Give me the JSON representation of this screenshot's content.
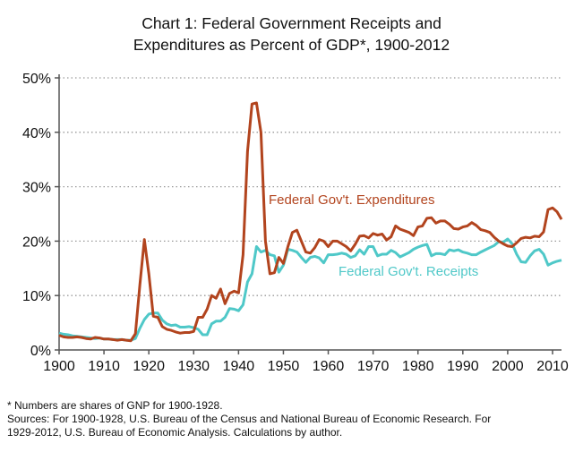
{
  "chart_data": {
    "type": "line",
    "title": "Chart 1: Federal Government Receipts and Expenditures as Percent of GDP*, 1900-2012",
    "title_lines": [
      "Chart 1: Federal Government Receipts and",
      "Expenditures as Percent of GDP*, 1900-2012"
    ],
    "xlabel": "",
    "ylabel": "",
    "xlim": [
      1900,
      2012
    ],
    "ylim": [
      0,
      50
    ],
    "x_ticks": [
      "1900",
      "1910",
      "1920",
      "1930",
      "1940",
      "1950",
      "1960",
      "1970",
      "1980",
      "1990",
      "2000",
      "2010"
    ],
    "y_ticks": [
      "0%",
      "10%",
      "20%",
      "30%",
      "40%",
      "50%"
    ],
    "grid": "horizontal dotted",
    "x_start": 1900,
    "series": [
      {
        "name": "Federal Gov't. Expenditures",
        "color": "#b2441e",
        "values": [
          2.7,
          2.4,
          2.3,
          2.3,
          2.4,
          2.3,
          2.1,
          2.0,
          2.3,
          2.2,
          2.0,
          2.0,
          1.9,
          1.8,
          1.9,
          1.8,
          1.7,
          3.0,
          12.0,
          20.3,
          14.0,
          6.2,
          6.0,
          4.3,
          3.8,
          3.6,
          3.3,
          3.1,
          3.2,
          3.2,
          3.4,
          6.0,
          6.0,
          7.5,
          10.0,
          9.5,
          11.2,
          8.5,
          10.4,
          10.8,
          10.5,
          17.5,
          36.5,
          45.2,
          45.4,
          40.0,
          20.0,
          14.0,
          14.2,
          17.0,
          15.9,
          19.0,
          21.6,
          22.0,
          20.0,
          18.0,
          17.8,
          18.8,
          20.3,
          20.0,
          19.0,
          20.0,
          20.0,
          19.5,
          19.0,
          18.2,
          19.4,
          20.9,
          21.0,
          20.6,
          21.4,
          21.1,
          21.3,
          20.2,
          20.8,
          22.8,
          22.2,
          21.9,
          21.6,
          21.0,
          22.6,
          22.8,
          24.2,
          24.3,
          23.3,
          23.7,
          23.7,
          23.1,
          22.3,
          22.2,
          22.6,
          22.8,
          23.4,
          22.9,
          22.1,
          21.9,
          21.6,
          20.7,
          20.0,
          19.5,
          19.1,
          19.0,
          19.7,
          20.5,
          20.7,
          20.6,
          20.9,
          20.8,
          21.7,
          25.8,
          26.1,
          25.4,
          24.0
        ]
      },
      {
        "name": "Federal Gov't. Receipts",
        "color": "#4fc8c8",
        "values": [
          3.1,
          2.9,
          2.8,
          2.6,
          2.5,
          2.4,
          2.3,
          2.2,
          2.1,
          2.2,
          2.0,
          2.0,
          1.9,
          1.9,
          1.9,
          1.8,
          1.8,
          2.1,
          4.0,
          5.6,
          6.6,
          6.8,
          6.8,
          5.5,
          4.8,
          4.5,
          4.6,
          4.2,
          4.2,
          4.3,
          4.1,
          3.8,
          2.8,
          2.8,
          4.8,
          5.3,
          5.3,
          6.0,
          7.6,
          7.5,
          7.2,
          8.3,
          12.5,
          14.0,
          19.0,
          18.0,
          18.3,
          17.5,
          17.3,
          14.3,
          15.6,
          18.5,
          18.3,
          18.0,
          17.0,
          16.1,
          17.0,
          17.2,
          16.9,
          16.0,
          17.5,
          17.5,
          17.6,
          17.8,
          17.6,
          17.0,
          17.3,
          18.4,
          17.6,
          19.0,
          19.0,
          17.3,
          17.6,
          17.6,
          18.3,
          17.9,
          17.1,
          17.5,
          17.9,
          18.5,
          18.9,
          19.2,
          19.4,
          17.3,
          17.7,
          17.7,
          17.5,
          18.4,
          18.2,
          18.4,
          18.0,
          17.8,
          17.5,
          17.5,
          18.0,
          18.4,
          18.8,
          19.2,
          19.9,
          19.8,
          20.4,
          19.5,
          17.6,
          16.2,
          16.1,
          17.3,
          18.2,
          18.5,
          17.6,
          15.6,
          16.0,
          16.3,
          16.5
        ]
      }
    ],
    "annotations": [
      "Federal Gov't. Expenditures",
      "Federal Gov't. Receipts"
    ]
  },
  "notes": {
    "footnote": "* Numbers are shares of GNP for 1900-1928.",
    "sources_1": "Sources: For 1900-1928, U.S. Bureau of the Census and National Bureau of Economic Research.  For",
    "sources_2": "1929-2012,  U.S. Bureau of Economic Analysis.  Calculations by author."
  }
}
